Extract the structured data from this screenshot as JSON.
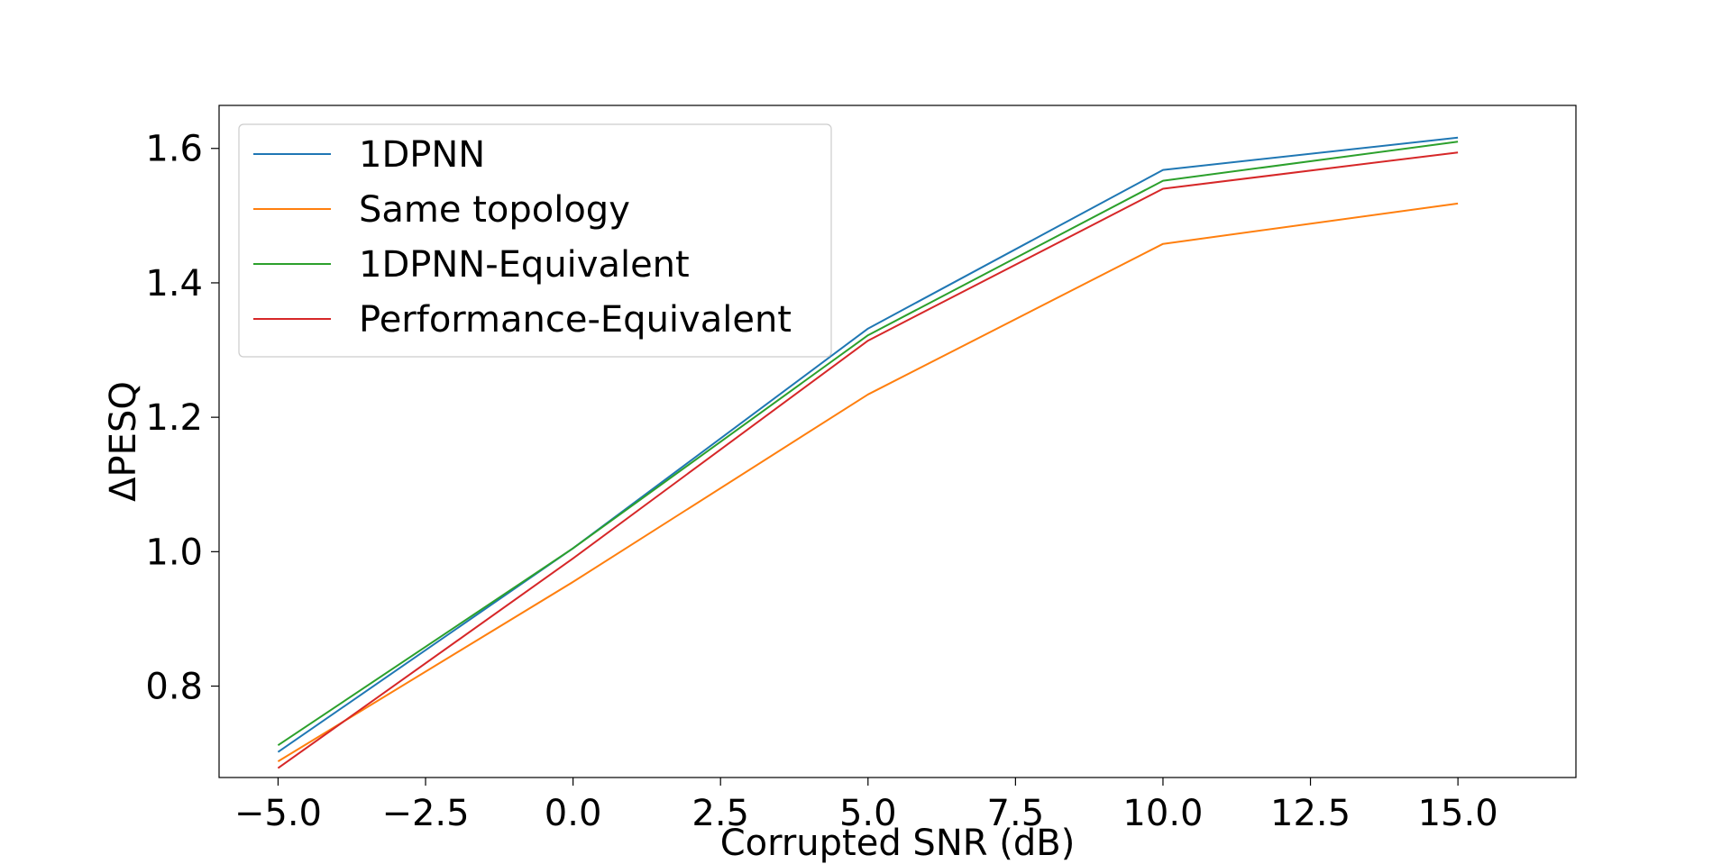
{
  "chart_data": {
    "type": "line",
    "title": "",
    "xlabel": "Corrupted SNR (dB)",
    "ylabel": "ΔPESQ",
    "x": [
      -5,
      0,
      5,
      10,
      15
    ],
    "xlim": [
      -6,
      17
    ],
    "ylim": [
      0.664,
      1.664
    ],
    "xticks": [
      -5.0,
      -2.5,
      0.0,
      2.5,
      5.0,
      7.5,
      10.0,
      12.5,
      15.0
    ],
    "xtick_labels": [
      "−5.0",
      "−2.5",
      "0.0",
      "2.5",
      "5.0",
      "7.5",
      "10.0",
      "12.5",
      "15.0"
    ],
    "yticks": [
      0.8,
      1.0,
      1.2,
      1.4,
      1.6
    ],
    "ytick_labels": [
      "0.8",
      "1.0",
      "1.2",
      "1.4",
      "1.6"
    ],
    "grid": false,
    "legend_position": "top-left",
    "series": [
      {
        "name": "1DPNN",
        "color": "#1f77b4",
        "values": [
          0.702,
          1.005,
          1.332,
          1.568,
          1.616
        ]
      },
      {
        "name": "Same topology",
        "color": "#ff7f0e",
        "values": [
          0.688,
          0.955,
          1.234,
          1.458,
          1.518
        ]
      },
      {
        "name": "1DPNN-Equivalent",
        "color": "#2ca02c",
        "values": [
          0.712,
          1.005,
          1.322,
          1.552,
          1.61
        ]
      },
      {
        "name": "Performance-Equivalent",
        "color": "#d62728",
        "values": [
          0.678,
          0.99,
          1.314,
          1.54,
          1.594
        ]
      }
    ]
  }
}
